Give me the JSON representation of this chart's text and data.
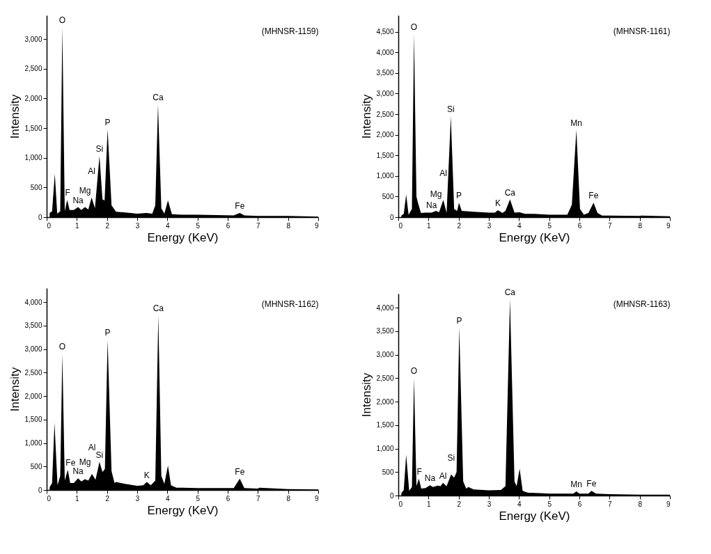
{
  "chart_data": [
    {
      "type": "area",
      "title": "(MHNSR-1159)",
      "xlabel": "Energy (KeV)",
      "ylabel": "Intensity",
      "xlim": [
        0,
        9
      ],
      "xticks": [
        0,
        1,
        2,
        3,
        4,
        5,
        6,
        7,
        8,
        9
      ],
      "ylim": [
        0,
        3400
      ],
      "yticks": [
        {
          "value": 0,
          "label": "0"
        },
        {
          "value": 500,
          "label": "500"
        },
        {
          "value": 1000,
          "label": "1,000"
        },
        {
          "value": 1500,
          "label": "1,500"
        },
        {
          "value": 2000,
          "label": "2,000"
        },
        {
          "value": 2500,
          "label": "2,500"
        },
        {
          "value": 3000,
          "label": "3,000"
        }
      ],
      "series": [
        {
          "color": "#000000",
          "x": [
            0.1,
            0.18,
            0.27,
            0.35,
            0.45,
            0.52,
            0.6,
            0.68,
            0.76,
            0.9,
            1.04,
            1.15,
            1.27,
            1.38,
            1.49,
            1.6,
            1.75,
            1.85,
            1.92,
            2.02,
            2.15,
            2.3,
            2.6,
            3.0,
            3.3,
            3.5,
            3.6,
            3.69,
            3.8,
            3.9,
            4.02,
            4.15,
            4.5,
            5.0,
            6.2,
            6.4,
            6.55,
            7.0,
            8.0,
            9.0
          ],
          "values": [
            70,
            100,
            730,
            60,
            100,
            3200,
            100,
            290,
            120,
            120,
            170,
            120,
            170,
            130,
            330,
            150,
            1030,
            300,
            280,
            1480,
            200,
            90,
            80,
            60,
            70,
            60,
            200,
            1900,
            150,
            60,
            280,
            50,
            40,
            40,
            30,
            70,
            30,
            20,
            20,
            10
          ]
        }
      ],
      "annotations": [
        {
          "text": "O",
          "x": 0.52,
          "y": 3200
        },
        {
          "text": "F",
          "x": 0.68,
          "y": 290
        },
        {
          "text": "Na",
          "x": 1.04,
          "y": 170
        },
        {
          "text": "Mg",
          "x": 1.27,
          "y": 170
        },
        {
          "text": "Al",
          "x": 1.49,
          "y": 330
        },
        {
          "text": "Si",
          "x": 1.75,
          "y": 1030
        },
        {
          "text": "P",
          "x": 2.02,
          "y": 1480
        },
        {
          "text": "Ca",
          "x": 3.69,
          "y": 1900
        },
        {
          "text": "Fe",
          "x": 6.4,
          "y": 70
        }
      ]
    },
    {
      "type": "area",
      "title": "(MHNSR-1161)",
      "xlabel": "Energy (KeV)",
      "ylabel": "Intensity",
      "xlim": [
        0,
        9
      ],
      "xticks": [
        0,
        1,
        2,
        3,
        4,
        5,
        6,
        7,
        8,
        9
      ],
      "ylim": [
        0,
        4900
      ],
      "yticks": [
        {
          "value": 0,
          "label": "0"
        },
        {
          "value": 500,
          "label": "500"
        },
        {
          "value": 1000,
          "label": "1,000"
        },
        {
          "value": 1500,
          "label": "1,500"
        },
        {
          "value": 2000,
          "label": "2,000"
        },
        {
          "value": 2500,
          "label": "2,500"
        },
        {
          "value": 3000,
          "label": "3,000"
        },
        {
          "value": 3500,
          "label": "3,500"
        },
        {
          "value": 4000,
          "label": "4,000"
        },
        {
          "value": 4500,
          "label": "4,500"
        }
      ],
      "series": [
        {
          "color": "#000000",
          "x": [
            0.1,
            0.18,
            0.26,
            0.34,
            0.45,
            0.52,
            0.6,
            0.65,
            0.75,
            0.9,
            1.1,
            1.25,
            1.35,
            1.49,
            1.6,
            1.74,
            1.85,
            1.95,
            2.01,
            2.1,
            2.5,
            3.0,
            3.2,
            3.3,
            3.45,
            3.55,
            3.7,
            3.85,
            4.02,
            4.2,
            4.5,
            5.0,
            5.6,
            5.75,
            5.9,
            6.02,
            6.15,
            6.3,
            6.47,
            6.6,
            6.75,
            7.0,
            8.0,
            8.05,
            9.0
          ],
          "values": [
            40,
            80,
            550,
            60,
            200,
            4450,
            500,
            350,
            100,
            110,
            110,
            150,
            120,
            420,
            100,
            2450,
            200,
            150,
            350,
            150,
            130,
            110,
            110,
            170,
            100,
            150,
            430,
            110,
            120,
            80,
            80,
            60,
            60,
            300,
            2120,
            200,
            60,
            100,
            350,
            100,
            40,
            40,
            30,
            40,
            20
          ]
        }
      ],
      "annotations": [
        {
          "text": "O",
          "x": 0.52,
          "y": 4450
        },
        {
          "text": "Na",
          "x": 1.1,
          "y": 110
        },
        {
          "text": "Mg",
          "x": 1.25,
          "y": 150
        },
        {
          "text": "Al",
          "x": 1.49,
          "y": 420
        },
        {
          "text": "Si",
          "x": 1.74,
          "y": 2450
        },
        {
          "text": "P",
          "x": 2.01,
          "y": 350
        },
        {
          "text": "K",
          "x": 3.3,
          "y": 170
        },
        {
          "text": "Ca",
          "x": 3.7,
          "y": 430
        },
        {
          "text": "Mn",
          "x": 5.9,
          "y": 2120
        },
        {
          "text": "Fe",
          "x": 6.47,
          "y": 350
        }
      ]
    },
    {
      "type": "area",
      "title": "(MHNSR-1162)",
      "xlabel": "Energy (KeV)",
      "ylabel": "Intensity",
      "xlim": [
        0,
        9
      ],
      "xticks": [
        0,
        1,
        2,
        3,
        4,
        5,
        6,
        7,
        8,
        9
      ],
      "ylim": [
        0,
        4300
      ],
      "yticks": [
        {
          "value": 0,
          "label": "0"
        },
        {
          "value": 500,
          "label": "500"
        },
        {
          "value": 1000,
          "label": "1,000"
        },
        {
          "value": 1500,
          "label": "1,500"
        },
        {
          "value": 2000,
          "label": "2,000"
        },
        {
          "value": 2500,
          "label": "2,500"
        },
        {
          "value": 3000,
          "label": "3,000"
        },
        {
          "value": 3500,
          "label": "3,500"
        },
        {
          "value": 4000,
          "label": "4,000"
        }
      ],
      "series": [
        {
          "color": "#000000",
          "x": [
            0.1,
            0.18,
            0.26,
            0.36,
            0.45,
            0.52,
            0.6,
            0.7,
            0.78,
            0.9,
            1.04,
            1.15,
            1.27,
            1.38,
            1.5,
            1.62,
            1.75,
            1.85,
            1.93,
            2.02,
            2.15,
            2.25,
            2.3,
            2.6,
            3.0,
            3.2,
            3.32,
            3.45,
            3.6,
            3.7,
            3.8,
            3.9,
            4.02,
            4.12,
            4.3,
            4.5,
            5.0,
            6.2,
            6.4,
            6.55,
            7.0,
            7.05,
            8.0,
            9.0
          ],
          "values": [
            60,
            150,
            1430,
            100,
            300,
            2900,
            200,
            430,
            150,
            150,
            250,
            180,
            230,
            200,
            340,
            220,
            600,
            380,
            450,
            3200,
            400,
            150,
            170,
            130,
            90,
            100,
            170,
            100,
            200,
            3720,
            300,
            130,
            520,
            100,
            50,
            50,
            40,
            40,
            240,
            40,
            30,
            50,
            20,
            10
          ]
        }
      ],
      "annotations": [
        {
          "text": "O",
          "x": 0.52,
          "y": 2900
        },
        {
          "text": "Fe",
          "x": 0.7,
          "y": 430
        },
        {
          "text": "Na",
          "x": 1.04,
          "y": 250
        },
        {
          "text": "Mg",
          "x": 1.27,
          "y": 230
        },
        {
          "text": "Al",
          "x": 1.5,
          "y": 340
        },
        {
          "text": "Si",
          "x": 1.75,
          "y": 600
        },
        {
          "text": "P",
          "x": 2.02,
          "y": 3200
        },
        {
          "text": "K",
          "x": 3.32,
          "y": 170
        },
        {
          "text": "Ca",
          "x": 3.7,
          "y": 3720
        },
        {
          "text": "Fe",
          "x": 6.4,
          "y": 240
        }
      ]
    },
    {
      "type": "area",
      "title": "(MHNSR-1163)",
      "xlabel": "Energy (KeV)",
      "ylabel": "Intensity",
      "xlim": [
        0,
        9
      ],
      "xticks": [
        0,
        1,
        2,
        3,
        4,
        5,
        6,
        7,
        8,
        9
      ],
      "ylim": [
        0,
        4300
      ],
      "yticks": [
        {
          "value": 0,
          "label": "0"
        },
        {
          "value": 500,
          "label": "500"
        },
        {
          "value": 1000,
          "label": "1,000"
        },
        {
          "value": 1500,
          "label": "1,500"
        },
        {
          "value": 2000,
          "label": "2,000"
        },
        {
          "value": 2500,
          "label": "2,500"
        },
        {
          "value": 3000,
          "label": "3,000"
        },
        {
          "value": 3500,
          "label": "3,500"
        },
        {
          "value": 4000,
          "label": "4,000"
        }
      ],
      "series": [
        {
          "color": "#000000",
          "x": [
            0.1,
            0.18,
            0.26,
            0.36,
            0.45,
            0.52,
            0.6,
            0.68,
            0.76,
            0.9,
            1.05,
            1.15,
            1.3,
            1.4,
            1.48,
            1.6,
            1.75,
            1.85,
            1.93,
            2.02,
            2.15,
            2.25,
            2.32,
            2.5,
            3.0,
            3.4,
            3.55,
            3.7,
            3.85,
            3.92,
            4.02,
            4.12,
            4.3,
            4.8,
            5.0,
            5.8,
            5.9,
            6.0,
            6.3,
            6.4,
            6.55,
            7.0,
            8.0,
            9.0
          ],
          "values": [
            50,
            120,
            870,
            100,
            180,
            2500,
            200,
            360,
            150,
            160,
            220,
            180,
            210,
            200,
            270,
            200,
            450,
            380,
            500,
            3580,
            300,
            150,
            180,
            130,
            110,
            120,
            200,
            4180,
            300,
            200,
            570,
            100,
            60,
            50,
            40,
            40,
            90,
            40,
            40,
            100,
            40,
            30,
            20,
            20
          ]
        }
      ],
      "annotations": [
        {
          "text": "O",
          "x": 0.52,
          "y": 2500
        },
        {
          "text": "F",
          "x": 0.68,
          "y": 360
        },
        {
          "text": "Na",
          "x": 1.05,
          "y": 220
        },
        {
          "text": "Al",
          "x": 1.48,
          "y": 270
        },
        {
          "text": "Si",
          "x": 1.75,
          "y": 450
        },
        {
          "text": "P",
          "x": 2.02,
          "y": 3580
        },
        {
          "text": "Ca",
          "x": 3.7,
          "y": 4180
        },
        {
          "text": "Mn",
          "x": 5.9,
          "y": 90
        },
        {
          "text": "Fe",
          "x": 6.4,
          "y": 100
        }
      ]
    }
  ]
}
